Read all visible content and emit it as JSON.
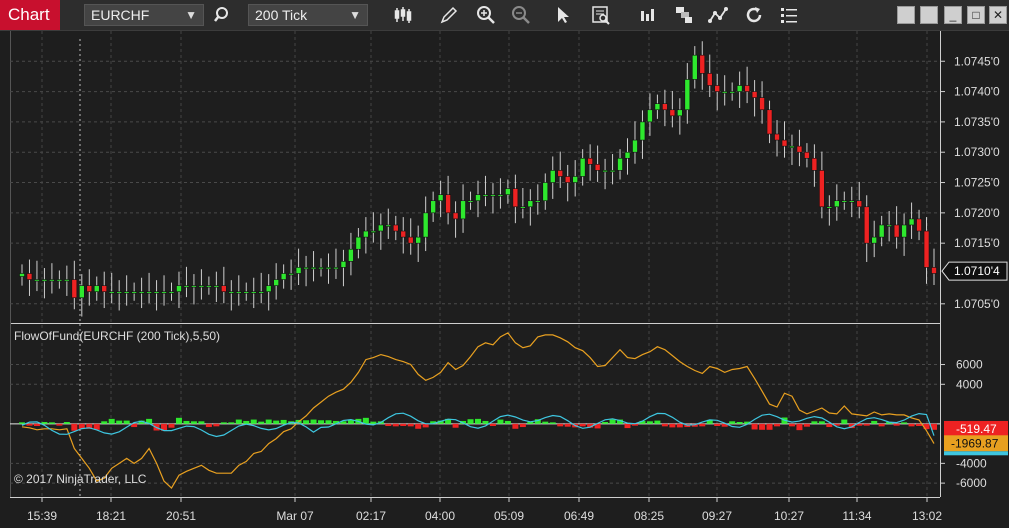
{
  "toolbar": {
    "tab_label": "Chart",
    "instrument": "EURCHF",
    "interval": "200 Tick",
    "icons": [
      "magnifier-icon",
      "bar-type-icon",
      "pencil-icon",
      "zoom-in-icon",
      "zoom-out-icon",
      "pointer-icon",
      "data-box-icon",
      "order-flow-icon",
      "templates-icon",
      "strategies-icon",
      "reload-icon",
      "properties-icon"
    ],
    "window_buttons": [
      "theme-icon",
      "theme-icon",
      "minimize-icon",
      "maximize-icon",
      "close-icon"
    ]
  },
  "price_panel": {
    "ticks": [
      "1.0745'0",
      "1.0740'0",
      "1.0735'0",
      "1.0730'0",
      "1.0725'0",
      "1.0720'0",
      "1.0715'0",
      "1.0705'0"
    ],
    "last_price": "1.0710'4"
  },
  "indicator_panel": {
    "title": "FlowOfFund(EURCHF (200 Tick),5,50)",
    "ticks": [
      "6000",
      "4000",
      "-4000",
      "-6000"
    ],
    "value_1": "-519.47",
    "value_2": "-1969.87",
    "colors": {
      "flow": "#e8a020",
      "signal": "#3ec6e0",
      "up": "#2ee82e",
      "down": "#ee2222"
    }
  },
  "time_axis": [
    "15:39",
    "18:21",
    "20:51",
    "Mar 07",
    "02:17",
    "04:00",
    "05:09",
    "06:49",
    "08:25",
    "09:27",
    "10:27",
    "11:34",
    "13:02"
  ],
  "copyright": "© 2017 NinjaTrader, LLC",
  "chart_data": {
    "type": "candlestick",
    "price_ylim": [
      1.0702,
      1.0749
    ],
    "indicator_ylim": [
      -7000,
      10000
    ],
    "closes": [
      1.071,
      1.0709,
      1.0709,
      1.0709,
      1.0709,
      1.0709,
      1.0709,
      1.0706,
      1.0708,
      1.0707,
      1.0708,
      1.0707,
      1.0707,
      1.0707,
      1.0707,
      1.0707,
      1.0707,
      1.0707,
      1.0707,
      1.0707,
      1.0707,
      1.0708,
      1.0708,
      1.0708,
      1.0708,
      1.0708,
      1.0708,
      1.0707,
      1.0707,
      1.0707,
      1.0707,
      1.0707,
      1.0707,
      1.0708,
      1.0709,
      1.071,
      1.071,
      1.0711,
      1.0711,
      1.0711,
      1.0711,
      1.0711,
      1.0711,
      1.0712,
      1.0714,
      1.0716,
      1.0717,
      1.0717,
      1.0718,
      1.0718,
      1.0717,
      1.0716,
      1.0715,
      1.0716,
      1.072,
      1.0722,
      1.0723,
      1.072,
      1.0719,
      1.0722,
      1.0722,
      1.0723,
      1.0723,
      1.0723,
      1.0723,
      1.0724,
      1.0721,
      1.0721,
      1.0722,
      1.0722,
      1.0725,
      1.0727,
      1.0726,
      1.0725,
      1.0726,
      1.0729,
      1.0728,
      1.0727,
      1.0727,
      1.0727,
      1.0729,
      1.073,
      1.0732,
      1.0735,
      1.0737,
      1.0738,
      1.0737,
      1.0736,
      1.0737,
      1.0742,
      1.0746,
      1.0743,
      1.0741,
      1.074,
      1.074,
      1.074,
      1.0741,
      1.074,
      1.0739,
      1.0737,
      1.0733,
      1.0732,
      1.0731,
      1.0731,
      1.073,
      1.0729,
      1.0727,
      1.0721,
      1.0721,
      1.0722,
      1.0722,
      1.0722,
      1.0721,
      1.0715,
      1.0716,
      1.0718,
      1.0718,
      1.0716,
      1.0718,
      1.0719,
      1.0717,
      1.0711,
      1.071
    ],
    "flow": [
      -300,
      -400,
      -600,
      -500,
      -500,
      -600,
      -500,
      -2500,
      -3500,
      -4500,
      -5800,
      -5500,
      -4500,
      -4000,
      -3500,
      -4000,
      -3500,
      -2500,
      -4000,
      -5800,
      -6500,
      -5200,
      -4800,
      -4500,
      -4200,
      -4700,
      -5000,
      -5000,
      -5000,
      -4200,
      -3800,
      -3000,
      -2800,
      -2000,
      -1500,
      -800,
      -500,
      200,
      800,
      1600,
      2200,
      2800,
      3200,
      3500,
      4200,
      5200,
      6500,
      6700,
      7000,
      6800,
      6500,
      6300,
      6000,
      5000,
      4400,
      4700,
      5200,
      6200,
      5500,
      5900,
      6800,
      7800,
      8200,
      8000,
      8800,
      9200,
      8200,
      7700,
      7900,
      8800,
      9000,
      9000,
      8700,
      8300,
      7700,
      7400,
      6700,
      5800,
      5900,
      6700,
      7500,
      6700,
      6600,
      7000,
      7300,
      7800,
      7500,
      6900,
      6300,
      5800,
      5400,
      5100,
      5800,
      5600,
      5200,
      5500,
      5600,
      5800,
      4600,
      3300,
      2000,
      1700,
      3100,
      2800,
      1400,
      1000,
      1300,
      1600,
      1100,
      1000,
      1800,
      1000,
      900,
      800,
      1200,
      900,
      1000,
      900,
      900,
      600,
      400,
      -700,
      -2000
    ]
  }
}
